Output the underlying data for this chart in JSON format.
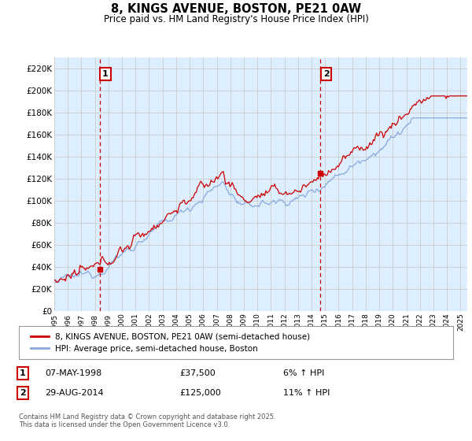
{
  "title": "8, KINGS AVENUE, BOSTON, PE21 0AW",
  "subtitle": "Price paid vs. HM Land Registry's House Price Index (HPI)",
  "legend_line1": "8, KINGS AVENUE, BOSTON, PE21 0AW (semi-detached house)",
  "legend_line2": "HPI: Average price, semi-detached house, Boston",
  "annotation1_label": "1",
  "annotation1_date": "07-MAY-1998",
  "annotation1_price": "£37,500",
  "annotation1_hpi": "6% ↑ HPI",
  "annotation2_label": "2",
  "annotation2_date": "29-AUG-2014",
  "annotation2_price": "£125,000",
  "annotation2_hpi": "11% ↑ HPI",
  "footer": "Contains HM Land Registry data © Crown copyright and database right 2025.\nThis data is licensed under the Open Government Licence v3.0.",
  "line_color_red": "#cc0000",
  "line_color_blue": "#88aadd",
  "vline_color": "#cc0000",
  "grid_color": "#cccccc",
  "chart_bg_color": "#ddeeff",
  "background_color": "#ffffff",
  "ylim": [
    0,
    230000
  ],
  "yticks": [
    0,
    20000,
    40000,
    60000,
    80000,
    100000,
    120000,
    140000,
    160000,
    180000,
    200000,
    220000
  ],
  "ytick_labels": [
    "£0",
    "£20K",
    "£40K",
    "£60K",
    "£80K",
    "£100K",
    "£120K",
    "£140K",
    "£160K",
    "£180K",
    "£200K",
    "£220K"
  ],
  "sale1_year": 1998.35,
  "sale1_price": 37500,
  "sale2_year": 2014.66,
  "sale2_price": 125000,
  "xstart": 1995,
  "xend": 2025.5
}
